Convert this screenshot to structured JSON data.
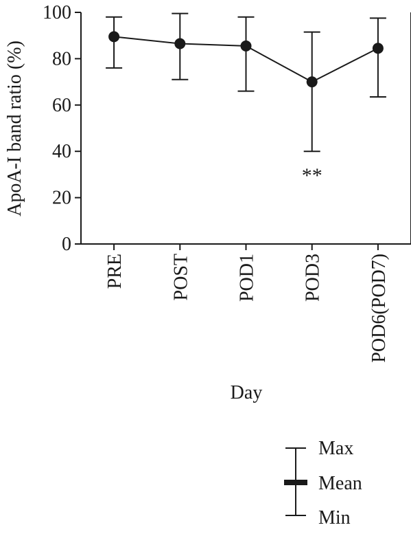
{
  "chart_data": {
    "type": "line",
    "ylabel": "ApoA-I band ratio (%)",
    "xlabel": "Day",
    "ylim": [
      0,
      100
    ],
    "yticks": [
      0,
      20,
      40,
      60,
      80,
      100
    ],
    "grid": false,
    "categories": [
      "PRE",
      "POST",
      "POD1",
      "POD3",
      "POD6(POD7)"
    ],
    "series": [
      {
        "mean": [
          89.5,
          86.5,
          85.5,
          70,
          84.5
        ],
        "max": [
          98,
          99.5,
          98,
          91.5,
          97.5
        ],
        "min": [
          76,
          71,
          66,
          40,
          63.5
        ]
      }
    ],
    "annotations": [
      {
        "category": "POD3",
        "text": "**"
      }
    ],
    "legend": {
      "position": "bottom-right",
      "max_label": "Max",
      "mean_label": "Mean",
      "min_label": "Min"
    },
    "colors": {
      "ink": "#1a1a1a"
    }
  }
}
